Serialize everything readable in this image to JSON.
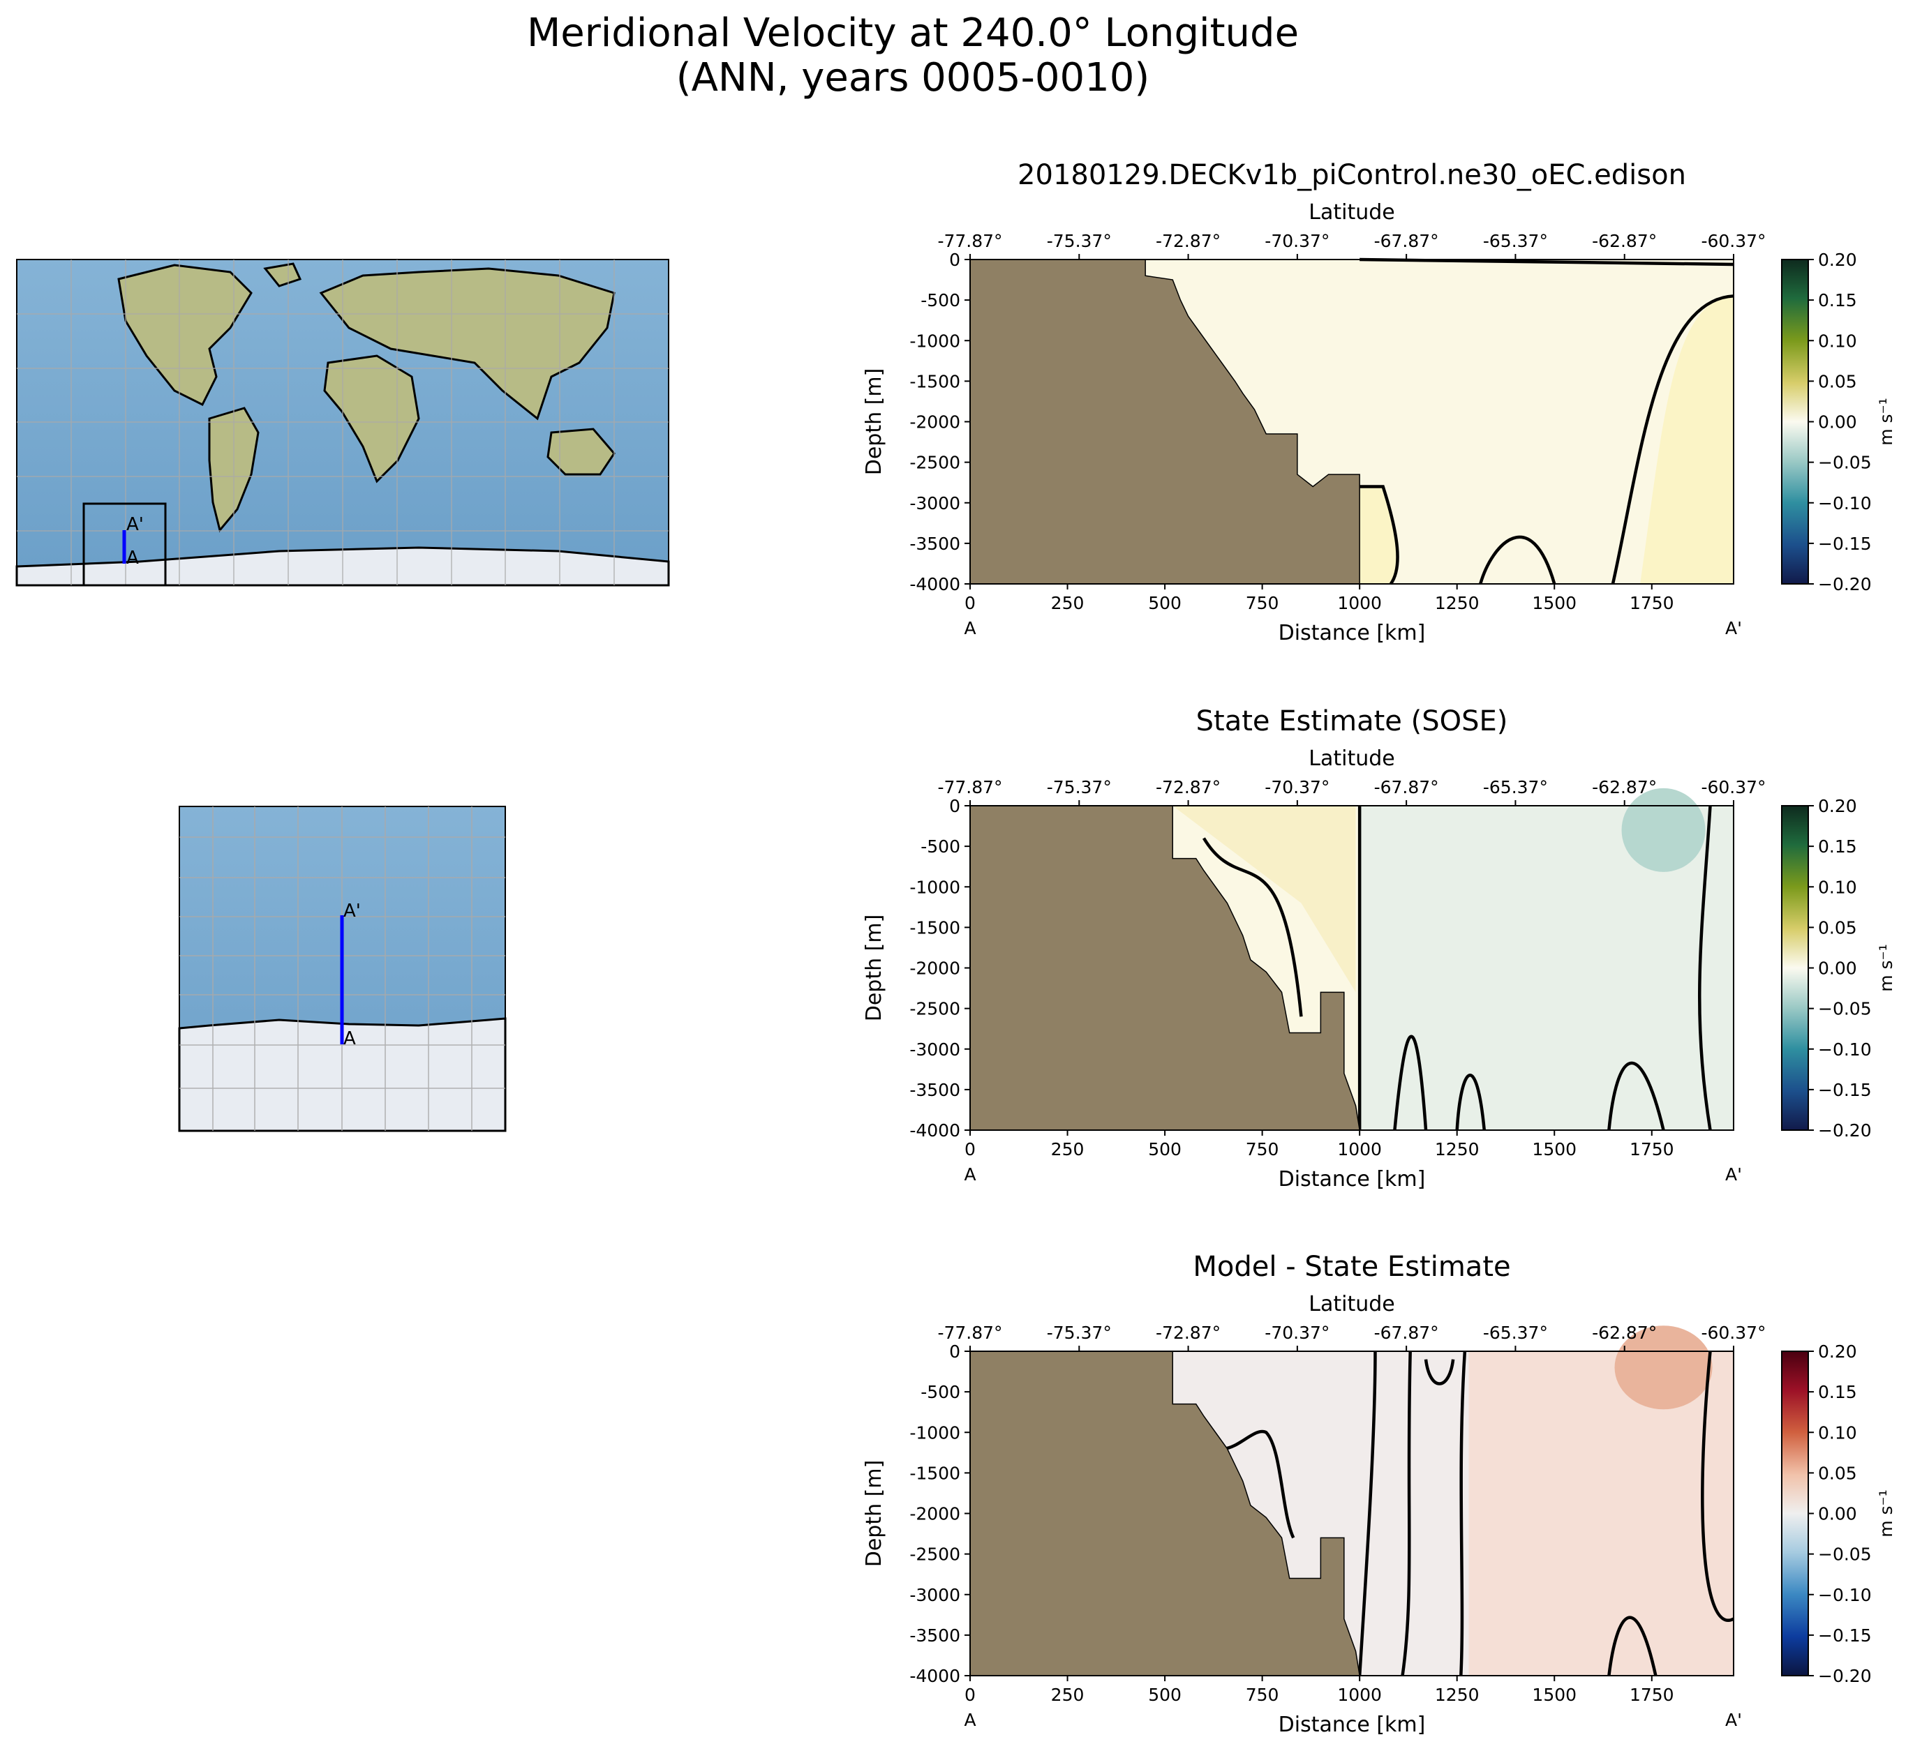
{
  "figure": {
    "title_line1": "Meridional Velocity at 240.0° Longitude",
    "title_line2": "(ANN, years 0005-0010)"
  },
  "chart_data": [
    {
      "type": "heatmap",
      "title": "20180129.DECKv1b_piControl.ne30_oEC.edison",
      "xlabel": "Distance [km]",
      "ylabel": "Depth [m]",
      "top_xlabel": "Latitude",
      "xlim": [
        0,
        1960
      ],
      "ylim": [
        -4000,
        0
      ],
      "x_ticks": [
        0,
        250,
        500,
        750,
        1000,
        1250,
        1500,
        1750
      ],
      "y_ticks": [
        0,
        -500,
        -1000,
        -1500,
        -2000,
        -2500,
        -3000,
        -3500,
        -4000
      ],
      "lat_ticks": [
        "-77.87°",
        "-75.37°",
        "-72.87°",
        "-70.37°",
        "-67.87°",
        "-65.37°",
        "-62.87°",
        "-60.37°"
      ],
      "start_label": "A",
      "end_label": "A'",
      "colorbar": {
        "label": "m s⁻¹",
        "range": [
          -0.2,
          0.2
        ],
        "colormap": "gist_earth-like",
        "ticks": [
          "0.20",
          "0.15",
          "0.10",
          "0.05",
          "0.00",
          "−0.05",
          "−0.10",
          "−0.15",
          "−0.20"
        ]
      },
      "field_value_range": [
        0.0,
        0.03
      ],
      "bathymetry_km_depth": [
        [
          0,
          0
        ],
        [
          450,
          0
        ],
        [
          450,
          -200
        ],
        [
          520,
          -250
        ],
        [
          540,
          -500
        ],
        [
          560,
          -700
        ],
        [
          590,
          -900
        ],
        [
          620,
          -1100
        ],
        [
          650,
          -1300
        ],
        [
          680,
          -1500
        ],
        [
          700,
          -1650
        ],
        [
          730,
          -1850
        ],
        [
          760,
          -2150
        ],
        [
          840,
          -2150
        ],
        [
          840,
          -2650
        ],
        [
          880,
          -2800
        ],
        [
          920,
          -2650
        ],
        [
          1000,
          -2650
        ],
        [
          1000,
          -4000
        ]
      ]
    },
    {
      "type": "heatmap",
      "title": "State Estimate (SOSE)",
      "xlabel": "Distance [km]",
      "ylabel": "Depth [m]",
      "top_xlabel": "Latitude",
      "xlim": [
        0,
        1960
      ],
      "ylim": [
        -4000,
        0
      ],
      "x_ticks": [
        0,
        250,
        500,
        750,
        1000,
        1250,
        1500,
        1750
      ],
      "y_ticks": [
        0,
        -500,
        -1000,
        -1500,
        -2000,
        -2500,
        -3000,
        -3500,
        -4000
      ],
      "lat_ticks": [
        "-77.87°",
        "-75.37°",
        "-72.87°",
        "-70.37°",
        "-67.87°",
        "-65.37°",
        "-62.87°",
        "-60.37°"
      ],
      "start_label": "A",
      "end_label": "A'",
      "colorbar": {
        "label": "m s⁻¹",
        "range": [
          -0.2,
          0.2
        ],
        "colormap": "gist_earth-like",
        "ticks": [
          "0.20",
          "0.15",
          "0.10",
          "0.05",
          "0.00",
          "−0.05",
          "−0.10",
          "−0.15",
          "−0.20"
        ]
      },
      "field_value_range": [
        -0.04,
        0.03
      ],
      "bathymetry_km_depth": [
        [
          0,
          0
        ],
        [
          520,
          0
        ],
        [
          520,
          -650
        ],
        [
          580,
          -650
        ],
        [
          600,
          -800
        ],
        [
          630,
          -1000
        ],
        [
          660,
          -1200
        ],
        [
          700,
          -1600
        ],
        [
          720,
          -1900
        ],
        [
          760,
          -2050
        ],
        [
          800,
          -2300
        ],
        [
          820,
          -2800
        ],
        [
          900,
          -2800
        ],
        [
          900,
          -2300
        ],
        [
          960,
          -2300
        ],
        [
          960,
          -3300
        ],
        [
          990,
          -3700
        ],
        [
          1000,
          -4000
        ]
      ]
    },
    {
      "type": "heatmap",
      "title": "Model - State Estimate",
      "xlabel": "Distance [km]",
      "ylabel": "Depth [m]",
      "top_xlabel": "Latitude",
      "xlim": [
        0,
        1960
      ],
      "ylim": [
        -4000,
        0
      ],
      "x_ticks": [
        0,
        250,
        500,
        750,
        1000,
        1250,
        1500,
        1750
      ],
      "y_ticks": [
        0,
        -500,
        -1000,
        -1500,
        -2000,
        -2500,
        -3000,
        -3500,
        -4000
      ],
      "lat_ticks": [
        "-77.87°",
        "-75.37°",
        "-72.87°",
        "-70.37°",
        "-67.87°",
        "-65.37°",
        "-62.87°",
        "-60.37°"
      ],
      "start_label": "A",
      "end_label": "A'",
      "colorbar": {
        "label": "m s⁻¹",
        "range": [
          -0.2,
          0.2
        ],
        "colormap": "RdBu_r",
        "ticks": [
          "0.20",
          "0.15",
          "0.10",
          "0.05",
          "0.00",
          "−0.05",
          "−0.10",
          "−0.15",
          "−0.20"
        ]
      },
      "field_value_range": [
        -0.02,
        0.05
      ],
      "bathymetry_km_depth": [
        [
          0,
          0
        ],
        [
          520,
          0
        ],
        [
          520,
          -650
        ],
        [
          580,
          -650
        ],
        [
          600,
          -800
        ],
        [
          630,
          -1000
        ],
        [
          660,
          -1200
        ],
        [
          700,
          -1600
        ],
        [
          720,
          -1900
        ],
        [
          760,
          -2050
        ],
        [
          800,
          -2300
        ],
        [
          820,
          -2800
        ],
        [
          900,
          -2800
        ],
        [
          900,
          -2300
        ],
        [
          960,
          -2300
        ],
        [
          960,
          -3300
        ],
        [
          990,
          -3700
        ],
        [
          1000,
          -4000
        ]
      ]
    }
  ],
  "maps": {
    "global": {
      "start_label": "A",
      "end_label": "A'"
    },
    "zoom": {
      "start_label": "A",
      "end_label": "A'"
    }
  },
  "colors": {
    "land": "#8f8064",
    "ocean": "#7aa9d0",
    "ice": "#e7ebf2",
    "section_line": "#0000ff"
  }
}
